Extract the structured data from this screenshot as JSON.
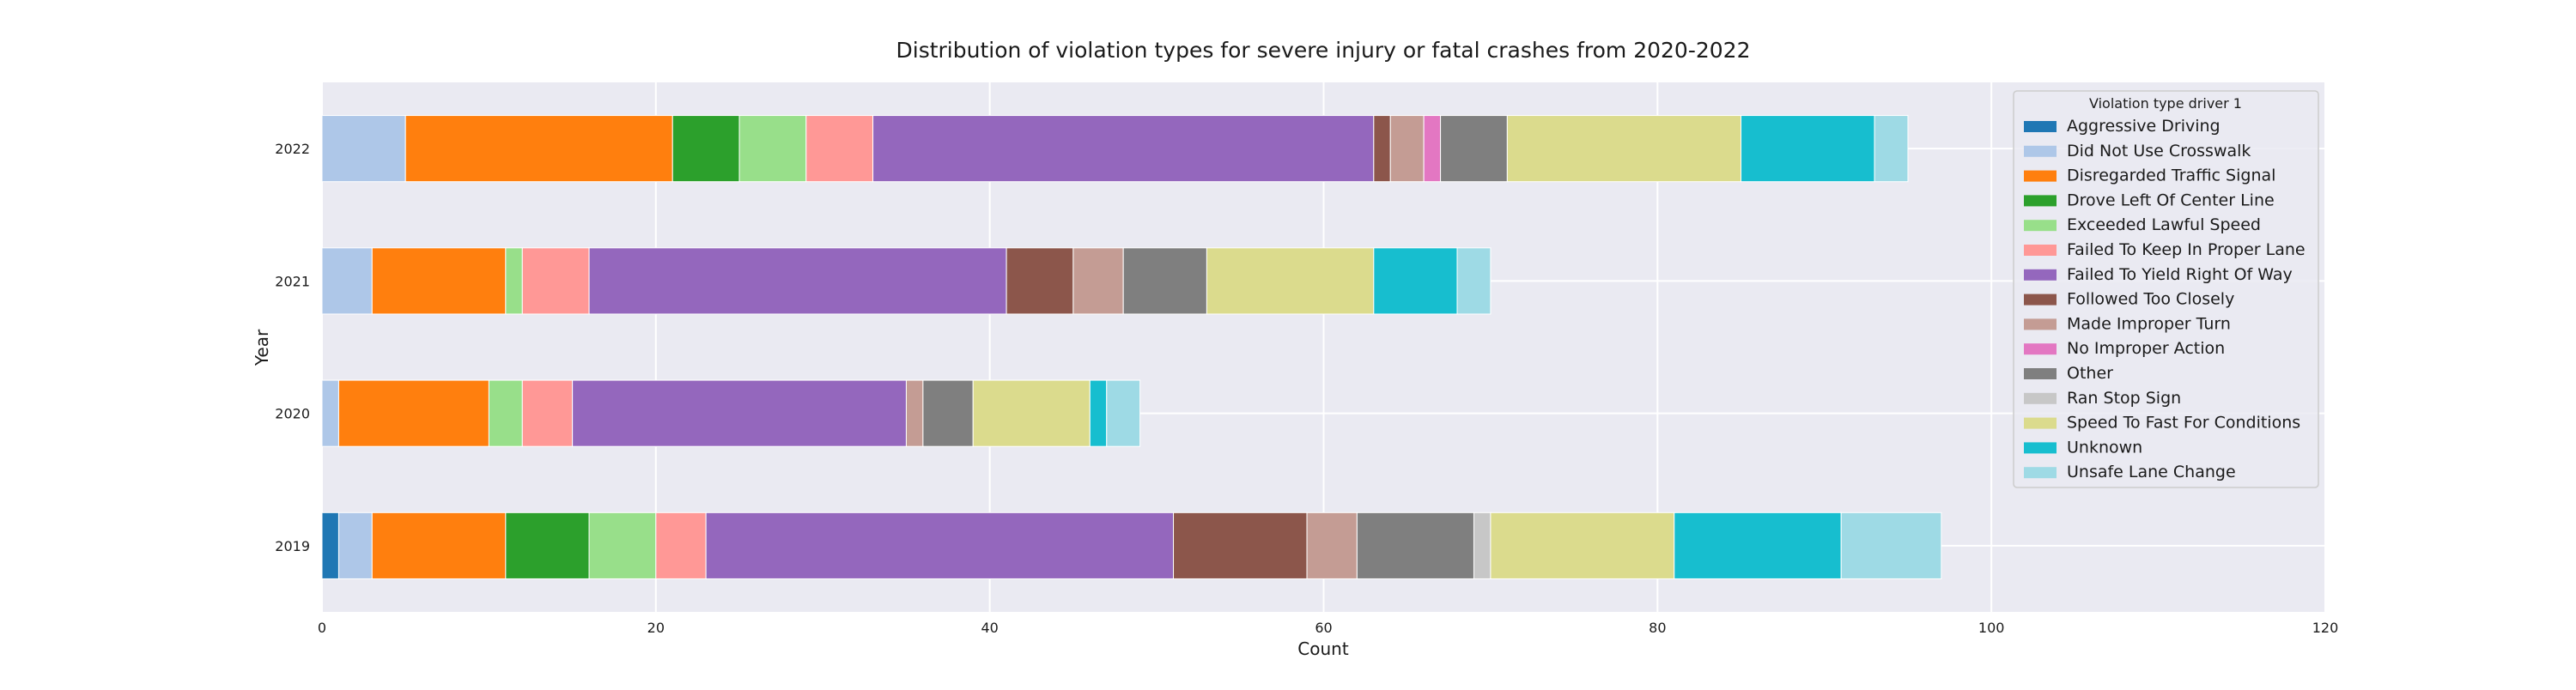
{
  "chart_data": {
    "type": "bar",
    "orientation": "horizontal",
    "stacked": true,
    "title": "Distribution of violation types for severe injury or fatal crashes from 2020-2022",
    "xlabel": "Count",
    "ylabel": "Year",
    "xlim": [
      0,
      120
    ],
    "xticks": [
      0,
      20,
      40,
      60,
      80,
      100,
      120
    ],
    "grid": true,
    "background": "#eaeaf2",
    "legend": {
      "title": "Violation type driver 1",
      "placement": "top-right"
    },
    "categories": [
      "2019",
      "2020",
      "2021",
      "2022"
    ],
    "series": [
      {
        "name": "Aggressive Driving",
        "color": "#1f77b4",
        "values": [
          1,
          0,
          0,
          0
        ]
      },
      {
        "name": "Did Not Use Crosswalk",
        "color": "#aec7e8",
        "values": [
          2,
          1,
          3,
          5
        ]
      },
      {
        "name": "Disregarded Traffic Signal",
        "color": "#ff7f0e",
        "values": [
          8,
          9,
          8,
          16
        ]
      },
      {
        "name": "Drove Left Of Center Line",
        "color": "#2ca02c",
        "values": [
          5,
          0,
          0,
          4
        ]
      },
      {
        "name": "Exceeded Lawful Speed",
        "color": "#98df8a",
        "values": [
          4,
          2,
          1,
          4
        ]
      },
      {
        "name": "Failed To Keep In Proper Lane",
        "color": "#ff9896",
        "values": [
          3,
          3,
          4,
          4
        ]
      },
      {
        "name": "Failed To Yield Right Of Way",
        "color": "#9467bd",
        "values": [
          28,
          20,
          25,
          30
        ]
      },
      {
        "name": "Followed Too Closely",
        "color": "#8c564b",
        "values": [
          8,
          0,
          4,
          1
        ]
      },
      {
        "name": "Made Improper Turn",
        "color": "#c49c94",
        "values": [
          3,
          1,
          3,
          2
        ]
      },
      {
        "name": "No Improper Action",
        "color": "#e377c2",
        "values": [
          0,
          0,
          0,
          1
        ]
      },
      {
        "name": "Other",
        "color": "#7f7f7f",
        "values": [
          7,
          3,
          5,
          4
        ]
      },
      {
        "name": "Ran Stop Sign",
        "color": "#c7c7c7",
        "values": [
          1,
          0,
          0,
          0
        ]
      },
      {
        "name": "Speed To Fast For Conditions",
        "color": "#dbdb8d",
        "values": [
          11,
          7,
          10,
          14
        ]
      },
      {
        "name": "Unknown",
        "color": "#17becf",
        "values": [
          10,
          1,
          5,
          8
        ]
      },
      {
        "name": "Unsafe Lane Change",
        "color": "#9edae5",
        "values": [
          6,
          2,
          2,
          2
        ]
      }
    ]
  }
}
